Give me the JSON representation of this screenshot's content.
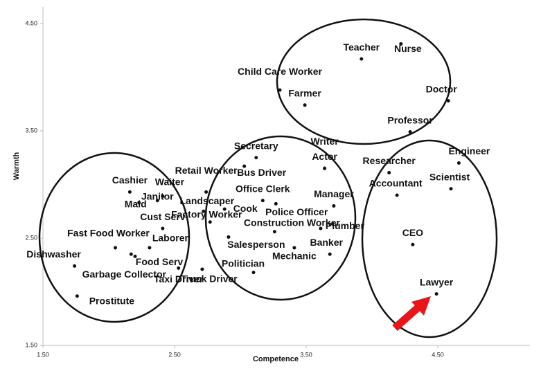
{
  "chart_data": {
    "type": "scatter",
    "x_label": "Competence",
    "y_label": "Warmth",
    "xlim": [
      1.5,
      5.2
    ],
    "ylim": [
      1.5,
      4.5
    ],
    "xticks": [
      {
        "value": 1.5,
        "label": "1.50"
      },
      {
        "value": 2.5,
        "label": "2.50"
      },
      {
        "value": 3.5,
        "label": "3.50"
      },
      {
        "value": 4.5,
        "label": "4.50"
      }
    ],
    "yticks": [
      {
        "value": 1.5,
        "label": "1.50"
      },
      {
        "value": 2.5,
        "label": "2.50"
      },
      {
        "value": 3.5,
        "label": "3.50"
      },
      {
        "value": 4.5,
        "label": "4.50"
      }
    ],
    "color": "#111111",
    "point_labels": [
      "Teacher",
      "Nurse",
      "Child Care Worker",
      "Farmer",
      "Doctor",
      "Professor",
      "Writer",
      "Actor",
      "Secretary",
      "Bus Driver",
      "Office Clerk",
      "Police Officer",
      "Manager",
      "Cook",
      "Construction Worker",
      "Plumber",
      "Banker",
      "Mechanic",
      "Salesperson",
      "Politician",
      "Retail Worker",
      "Landscaper",
      "Factory Worker",
      "Truck Driver",
      "Taxi Driver",
      "Cashier",
      "Waiter",
      "Janitor",
      "Maid",
      "Cust Serv",
      "Laborer",
      "Fast Food Worker",
      "Food Serv",
      "Garbage Collector",
      "Dishwasher",
      "Prostitute",
      "Researcher",
      "Engineer",
      "Scientist",
      "Accountant",
      "CEO",
      "Lawyer"
    ],
    "x": [
      3.92,
      4.22,
      3.3,
      3.49,
      4.58,
      4.29,
      3.64,
      3.64,
      3.12,
      3.03,
      3.17,
      3.27,
      3.71,
      2.88,
      3.26,
      3.61,
      3.68,
      3.41,
      2.91,
      3.1,
      2.74,
      2.72,
      2.77,
      2.71,
      2.53,
      2.16,
      2.41,
      2.37,
      2.23,
      2.41,
      2.31,
      2.05,
      2.2,
      2.17,
      1.74,
      1.76,
      4.13,
      4.66,
      4.6,
      4.19,
      4.31,
      4.49
    ],
    "y": [
      4.17,
      4.31,
      3.88,
      3.74,
      3.78,
      3.49,
      3.15,
      3.15,
      3.25,
      3.17,
      2.85,
      2.82,
      2.8,
      2.77,
      2.56,
      2.59,
      2.35,
      2.41,
      2.51,
      2.18,
      2.93,
      2.75,
      2.65,
      2.21,
      2.22,
      2.93,
      2.89,
      2.85,
      2.83,
      2.59,
      2.41,
      2.41,
      2.33,
      2.35,
      2.24,
      1.96,
      3.11,
      3.2,
      2.96,
      2.9,
      2.44,
      1.98
    ]
  }
}
